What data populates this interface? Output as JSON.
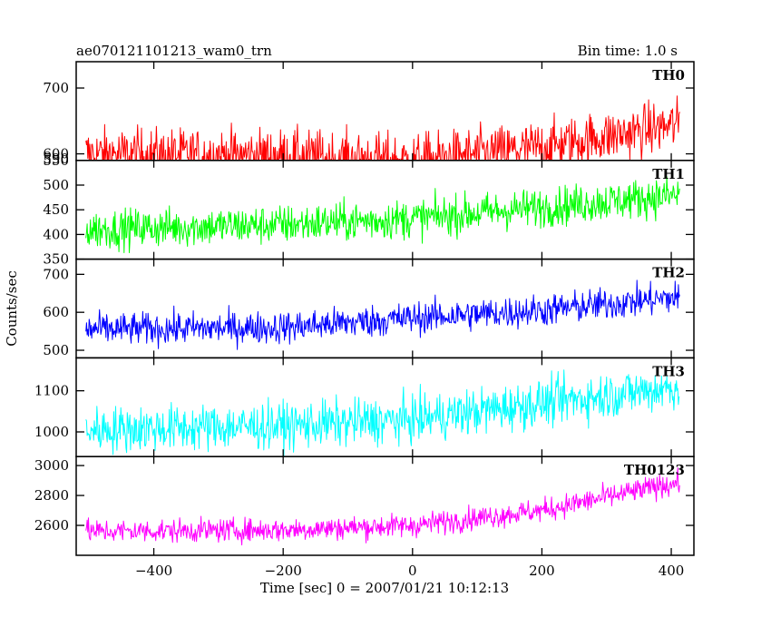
{
  "chart_data": {
    "type": "line",
    "title_left": "ae070121101213_wam0_trn",
    "title_right": "Bin time: 1.0 s",
    "xlabel": "Time [sec] 0 = 2007/01/21 10:12:13",
    "ylabel": "Counts/sec",
    "xlim": [
      -520,
      435
    ],
    "x_ticks": [
      -400,
      -200,
      0,
      200,
      400
    ],
    "x_range": [
      -505,
      413
    ],
    "panels": [
      {
        "name": "TH0",
        "color": "#ff0000",
        "ylim": [
          590,
          740
        ],
        "y_ticks": [
          600,
          700
        ],
        "y_tick_labels": [
          "600",
          "700"
        ],
        "extra_tick_labels": [
          "590"
        ],
        "trend": [
          [
            -505,
            600
          ],
          [
            -200,
            598
          ],
          [
            0,
            590
          ],
          [
            200,
            610
          ],
          [
            413,
            645
          ]
        ],
        "noise": 28
      },
      {
        "name": "TH1",
        "color": "#00ff00",
        "ylim": [
          350,
          550
        ],
        "y_ticks": [
          350,
          400,
          450,
          500,
          550
        ],
        "y_tick_labels": [
          "350",
          "400",
          "450",
          "500",
          "550"
        ],
        "extra_tick_labels": [],
        "trend": [
          [
            -505,
            410
          ],
          [
            -200,
            420
          ],
          [
            0,
            432
          ],
          [
            200,
            455
          ],
          [
            413,
            480
          ]
        ],
        "noise": 28
      },
      {
        "name": "TH2",
        "color": "#0000ff",
        "ylim": [
          480,
          740
        ],
        "y_ticks": [
          500,
          600,
          700
        ],
        "y_tick_labels": [
          "500",
          "600",
          "700"
        ],
        "extra_tick_labels": [],
        "trend": [
          [
            -505,
            555
          ],
          [
            -200,
            560
          ],
          [
            0,
            585
          ],
          [
            200,
            605
          ],
          [
            413,
            640
          ]
        ],
        "noise": 30
      },
      {
        "name": "TH3",
        "color": "#00ffff",
        "ylim": [
          940,
          1180
        ],
        "y_ticks": [
          1000,
          1100
        ],
        "y_tick_labels": [
          "1000",
          "1100"
        ],
        "extra_tick_labels": [],
        "trend": [
          [
            -505,
            1005
          ],
          [
            -200,
            1015
          ],
          [
            0,
            1030
          ],
          [
            200,
            1070
          ],
          [
            413,
            1110
          ]
        ],
        "noise": 40
      },
      {
        "name": "TH0123",
        "color": "#ff00ff",
        "ylim": [
          2400,
          3060
        ],
        "y_ticks": [
          2600,
          2800,
          3000
        ],
        "y_tick_labels": [
          "2600",
          "2800",
          "3000"
        ],
        "extra_tick_labels": [],
        "trend": [
          [
            -505,
            2560
          ],
          [
            -200,
            2570
          ],
          [
            0,
            2600
          ],
          [
            200,
            2700
          ],
          [
            413,
            2890
          ]
        ],
        "noise": 55
      }
    ]
  }
}
